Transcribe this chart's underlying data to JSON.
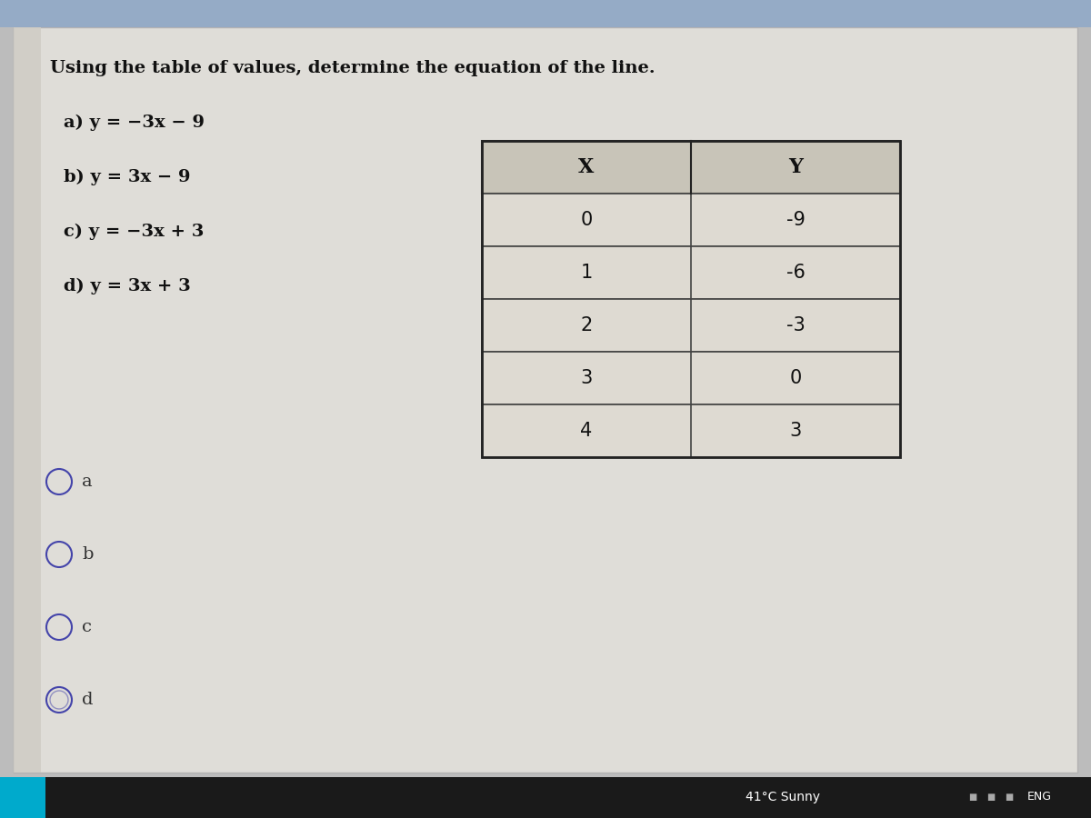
{
  "title": "Using the table of values, determine the equation of the line.",
  "option_texts": [
    "a) y = −3x − 9",
    "b) y = 3x − 9",
    "c) y = −3x + 3",
    "d) y = 3x + 3"
  ],
  "table_headers": [
    "X",
    "Y"
  ],
  "table_data": [
    [
      "0",
      "-9"
    ],
    [
      "1",
      "-6"
    ],
    [
      "2",
      "-3"
    ],
    [
      "3",
      "0"
    ],
    [
      "4",
      "3"
    ]
  ],
  "radio_options": [
    "a",
    "b",
    "c",
    "d"
  ],
  "selected_option": "d",
  "card_color": "#e8e6e0",
  "card_left_color": "#dddbd5",
  "top_bar_color": "#8fa8c8",
  "table_header_color": "#c8c4b8",
  "table_row_color": "#dedad2",
  "table_border_color": "#444444",
  "radio_color": "#4444aa",
  "status_bar_color": "#1a1a1a",
  "status_text": "41°C Sunny",
  "eng_text": "ENG",
  "taskbar_btn_color": "#00aacc",
  "title_fontsize": 14,
  "option_fontsize": 13,
  "table_fontsize": 14,
  "radio_fontsize": 13
}
